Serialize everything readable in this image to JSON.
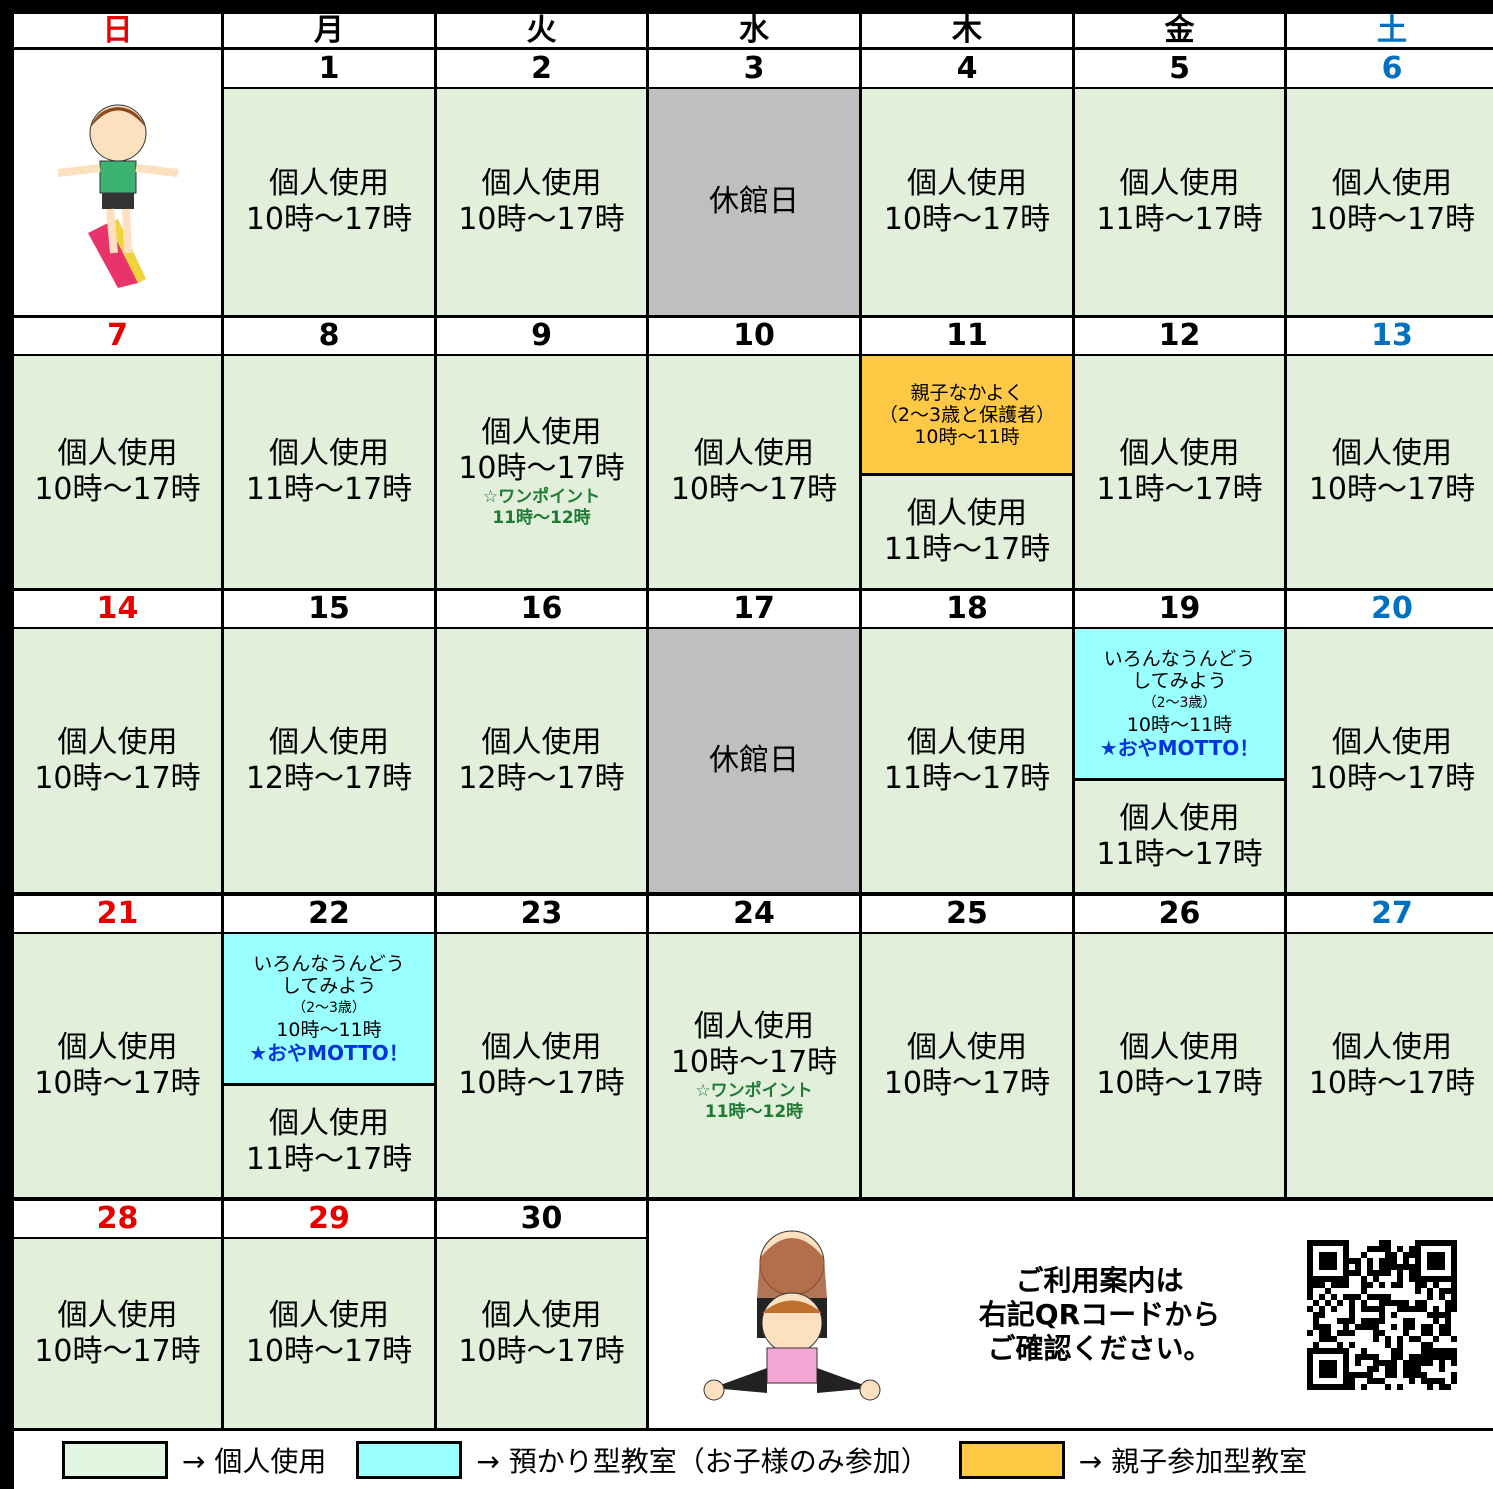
{
  "weekdays": [
    {
      "label": "日",
      "color": "#e60000"
    },
    {
      "label": "月",
      "color": "#000000"
    },
    {
      "label": "火",
      "color": "#000000"
    },
    {
      "label": "水",
      "color": "#000000"
    },
    {
      "label": "木",
      "color": "#000000"
    },
    {
      "label": "金",
      "color": "#000000"
    },
    {
      "label": "土",
      "color": "#0070c0"
    }
  ],
  "weeks": [
    {
      "days": [
        null,
        {
          "day": "1",
          "blocks": [
            {
              "color": "#e2efda",
              "lines": [
                "個人使用",
                "10時～17時"
              ]
            }
          ]
        },
        {
          "day": "2",
          "blocks": [
            {
              "color": "#e2efda",
              "lines": [
                "個人使用",
                "10時～17時"
              ]
            }
          ]
        },
        {
          "day": "3",
          "blocks": [
            {
              "color": "#bfbfbf",
              "lines": [
                "休館日"
              ]
            }
          ]
        },
        {
          "day": "4",
          "blocks": [
            {
              "color": "#e2efda",
              "lines": [
                "個人使用",
                "10時～17時"
              ]
            }
          ]
        },
        {
          "day": "5",
          "blocks": [
            {
              "color": "#e2efda",
              "lines": [
                "個人使用",
                "11時～17時"
              ]
            }
          ]
        },
        {
          "day": "6",
          "blocks": [
            {
              "color": "#e2efda",
              "lines": [
                "個人使用",
                "10時～17時"
              ]
            }
          ]
        }
      ]
    },
    {
      "days": [
        {
          "day": "7",
          "blocks": [
            {
              "color": "#e2efda",
              "lines": [
                "個人使用",
                "10時～17時"
              ]
            }
          ]
        },
        {
          "day": "8",
          "blocks": [
            {
              "color": "#e2efda",
              "lines": [
                "個人使用",
                "11時～17時"
              ]
            }
          ]
        },
        {
          "day": "9",
          "blocks": [
            {
              "color": "#e2efda",
              "lines": [
                "個人使用",
                "10時～17時"
              ],
              "notes": [
                "☆ワンポイント",
                "11時～12時"
              ]
            }
          ]
        },
        {
          "day": "10",
          "blocks": [
            {
              "color": "#e2efda",
              "lines": [
                "個人使用",
                "10時～17時"
              ]
            }
          ]
        },
        {
          "day": "11",
          "blocks": [
            {
              "color": "#ffc845",
              "lines": [
                "親子なかよく",
                "（2～3歳と保護者）",
                "10時～11時"
              ]
            },
            {
              "color": "#e2efda",
              "lines": [
                "個人使用",
                "11時～17時"
              ]
            }
          ]
        },
        {
          "day": "12",
          "blocks": [
            {
              "color": "#e2efda",
              "lines": [
                "個人使用",
                "11時～17時"
              ]
            }
          ]
        },
        {
          "day": "13",
          "blocks": [
            {
              "color": "#e2efda",
              "lines": [
                "個人使用",
                "10時～17時"
              ]
            }
          ]
        }
      ]
    },
    {
      "days": [
        {
          "day": "14",
          "blocks": [
            {
              "color": "#e2efda",
              "lines": [
                "個人使用",
                "10時～17時"
              ]
            }
          ]
        },
        {
          "day": "15",
          "blocks": [
            {
              "color": "#e2efda",
              "lines": [
                "個人使用",
                "12時～17時"
              ]
            }
          ]
        },
        {
          "day": "16",
          "blocks": [
            {
              "color": "#e2efda",
              "lines": [
                "個人使用",
                "12時～17時"
              ]
            }
          ]
        },
        {
          "day": "17",
          "blocks": [
            {
              "color": "#bfbfbf",
              "lines": [
                "休館日"
              ]
            }
          ]
        },
        {
          "day": "18",
          "blocks": [
            {
              "color": "#e2efda",
              "lines": [
                "個人使用",
                "11時～17時"
              ]
            }
          ]
        },
        {
          "day": "19",
          "blocks": [
            {
              "color": "#99ffff",
              "lines": [
                "いろんなうんどう",
                "してみよう",
                "（2～3歳）",
                "10時～11時"
              ],
              "highlight": "★おやMOTTO！"
            },
            {
              "color": "#e2efda",
              "lines": [
                "個人使用",
                "11時～17時"
              ]
            }
          ]
        },
        {
          "day": "20",
          "blocks": [
            {
              "color": "#e2efda",
              "lines": [
                "個人使用",
                "10時～17時"
              ]
            }
          ]
        }
      ]
    },
    {
      "days": [
        {
          "day": "21",
          "blocks": [
            {
              "color": "#e2efda",
              "lines": [
                "個人使用",
                "10時～17時"
              ]
            }
          ]
        },
        {
          "day": "22",
          "blocks": [
            {
              "color": "#99ffff",
              "lines": [
                "いろんなうんどう",
                "してみよう",
                "（2～3歳）",
                "10時～11時"
              ],
              "highlight": "★おやMOTTO！"
            },
            {
              "color": "#e2efda",
              "lines": [
                "個人使用",
                "11時～17時"
              ]
            }
          ]
        },
        {
          "day": "23",
          "blocks": [
            {
              "color": "#e2efda",
              "lines": [
                "個人使用",
                "10時～17時"
              ]
            }
          ]
        },
        {
          "day": "24",
          "blocks": [
            {
              "color": "#e2efda",
              "lines": [
                "個人使用",
                "10時～17時"
              ],
              "notes": [
                "☆ワンポイント",
                "11時～12時"
              ]
            }
          ]
        },
        {
          "day": "25",
          "blocks": [
            {
              "color": "#e2efda",
              "lines": [
                "個人使用",
                "10時～17時"
              ]
            }
          ]
        },
        {
          "day": "26",
          "blocks": [
            {
              "color": "#e2efda",
              "lines": [
                "個人使用",
                "10時～17時"
              ]
            }
          ]
        },
        {
          "day": "27",
          "blocks": [
            {
              "color": "#e2efda",
              "lines": [
                "個人使用",
                "10時～17時"
              ]
            }
          ]
        }
      ]
    },
    {
      "days": [
        {
          "day": "28",
          "blocks": [
            {
              "color": "#e2efda",
              "lines": [
                "個人使用",
                "10時～17時"
              ]
            }
          ]
        },
        {
          "day": "29",
          "color": "#e60000",
          "blocks": [
            {
              "color": "#e2efda",
              "lines": [
                "個人使用",
                "10時～17時"
              ]
            }
          ]
        },
        {
          "day": "30",
          "blocks": [
            {
              "color": "#e2efda",
              "lines": [
                "個人使用",
                "10時～17時"
              ]
            }
          ]
        }
      ]
    }
  ],
  "info": {
    "lines": [
      "ご利用案内は",
      "右記QRコードから",
      "ご確認ください。"
    ]
  },
  "legend": [
    {
      "color": "#e2f7e2",
      "label": "→ 個人使用"
    },
    {
      "color": "#99ffff",
      "label": "→ 預かり型教室（お子様のみ参加）"
    },
    {
      "color": "#ffc845",
      "label": "→ 親子参加型教室"
    }
  ]
}
